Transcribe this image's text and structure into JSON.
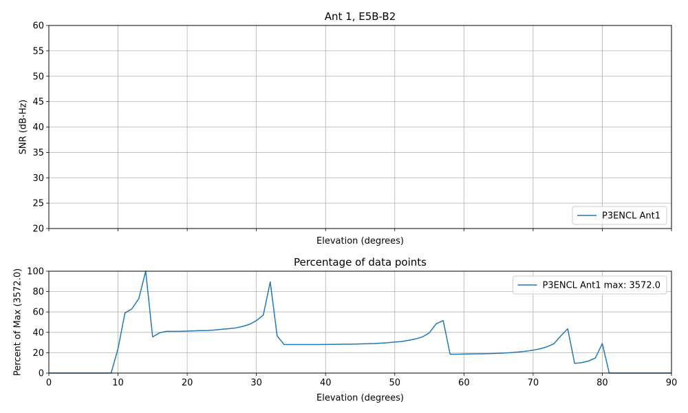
{
  "chart_data": [
    {
      "type": "line",
      "title": "Ant 1, E5B-B2",
      "xlabel": "Elevation (degrees)",
      "ylabel": "SNR (dB-Hz)",
      "xlim": [
        0,
        90
      ],
      "ylim": [
        20,
        60
      ],
      "xticks": [
        0,
        10,
        20,
        30,
        40,
        50,
        60,
        70,
        80,
        90
      ],
      "yticks": [
        20,
        25,
        30,
        35,
        40,
        45,
        50,
        55,
        60
      ],
      "show_xtick_labels": false,
      "grid": true,
      "legend": "lower-right",
      "series": [
        {
          "name": "P3ENCL Ant1",
          "color": "#1f77b4",
          "x": [],
          "y": []
        }
      ]
    },
    {
      "type": "line",
      "title": "Percentage of data points",
      "xlabel": "Elevation (degrees)",
      "ylabel": "Percent of Max (3572.0)",
      "xlim": [
        0,
        90
      ],
      "ylim": [
        0,
        100
      ],
      "xticks": [
        0,
        10,
        20,
        30,
        40,
        50,
        60,
        70,
        80,
        90
      ],
      "yticks": [
        0,
        20,
        40,
        60,
        80,
        100
      ],
      "show_xtick_labels": true,
      "grid": true,
      "legend": "upper-right",
      "series": [
        {
          "name": "P3ENCL Ant1 max: 3572.0",
          "color": "#1f77b4",
          "x": [
            0,
            1,
            2,
            3,
            4,
            5,
            6,
            7,
            8,
            9,
            10,
            11,
            12,
            13,
            14,
            15,
            16,
            17,
            18,
            19,
            20,
            21,
            22,
            23,
            24,
            25,
            26,
            27,
            28,
            29,
            30,
            31,
            32,
            33,
            34,
            35,
            36,
            37,
            38,
            39,
            40,
            41,
            42,
            43,
            44,
            45,
            46,
            47,
            48,
            49,
            50,
            51,
            52,
            53,
            54,
            55,
            56,
            57,
            58,
            59,
            60,
            61,
            62,
            63,
            64,
            65,
            66,
            67,
            68,
            69,
            70,
            71,
            72,
            73,
            74,
            75,
            76,
            77,
            78,
            79,
            80,
            81,
            82,
            83,
            84,
            85,
            86,
            87,
            88,
            89,
            90
          ],
          "y": [
            0,
            0,
            0,
            0,
            0,
            0,
            0,
            0,
            0,
            0,
            24,
            59,
            63,
            73,
            100,
            35.5,
            39.5,
            41,
            41,
            41,
            41.2,
            41.5,
            41.7,
            41.8,
            42.3,
            43,
            43.6,
            44.3,
            45.8,
            47.8,
            51.5,
            57,
            89.5,
            36.5,
            28,
            28,
            28,
            28,
            28,
            28,
            28.1,
            28.2,
            28.3,
            28.4,
            28.4,
            28.6,
            28.8,
            29,
            29.4,
            29.8,
            30.5,
            31,
            32.2,
            33.5,
            35.5,
            39.5,
            48.5,
            51.5,
            18.5,
            18.5,
            18.7,
            18.8,
            18.9,
            19,
            19.2,
            19.4,
            19.8,
            20.2,
            20.8,
            21.5,
            22.5,
            23.8,
            25.8,
            28.8,
            36.5,
            43.5,
            9.5,
            10.2,
            11.8,
            14.8,
            29,
            0,
            0,
            0,
            0,
            0,
            0,
            0,
            0,
            0,
            0
          ]
        }
      ]
    }
  ]
}
